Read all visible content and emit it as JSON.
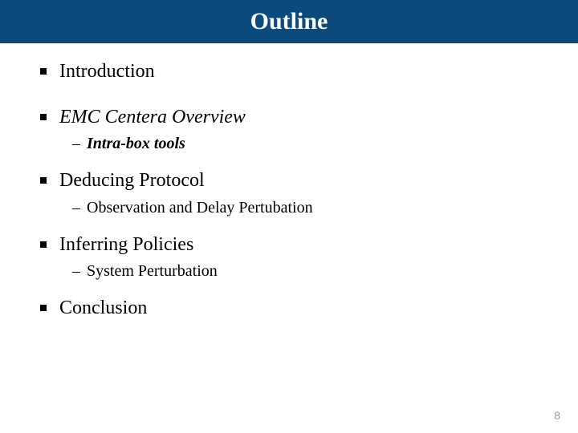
{
  "header": {
    "title": "Outline",
    "background_color": "#0b4a7a",
    "title_color": "#ffffff",
    "title_fontsize": 30
  },
  "outline": {
    "items": [
      {
        "label": "Introduction",
        "italic": false,
        "bold": false,
        "sub": null
      },
      {
        "label": "EMC Centera Overview",
        "italic": true,
        "bold": false,
        "sub": {
          "label": "Intra-box tools",
          "italic": true,
          "bold": true
        }
      },
      {
        "label": "Deducing Protocol",
        "italic": false,
        "bold": false,
        "sub": {
          "label": "Observation and Delay Pertubation",
          "italic": false,
          "bold": false
        }
      },
      {
        "label": "Inferring Policies",
        "italic": false,
        "bold": false,
        "sub": {
          "label": "System Perturbation",
          "italic": false,
          "bold": false
        }
      },
      {
        "label": "Conclusion",
        "italic": false,
        "bold": false,
        "sub": null
      }
    ]
  },
  "page_number": "8",
  "colors": {
    "bullet": "#000000",
    "text": "#000000",
    "page_number": "#9a9a9a",
    "background": "#ffffff"
  }
}
